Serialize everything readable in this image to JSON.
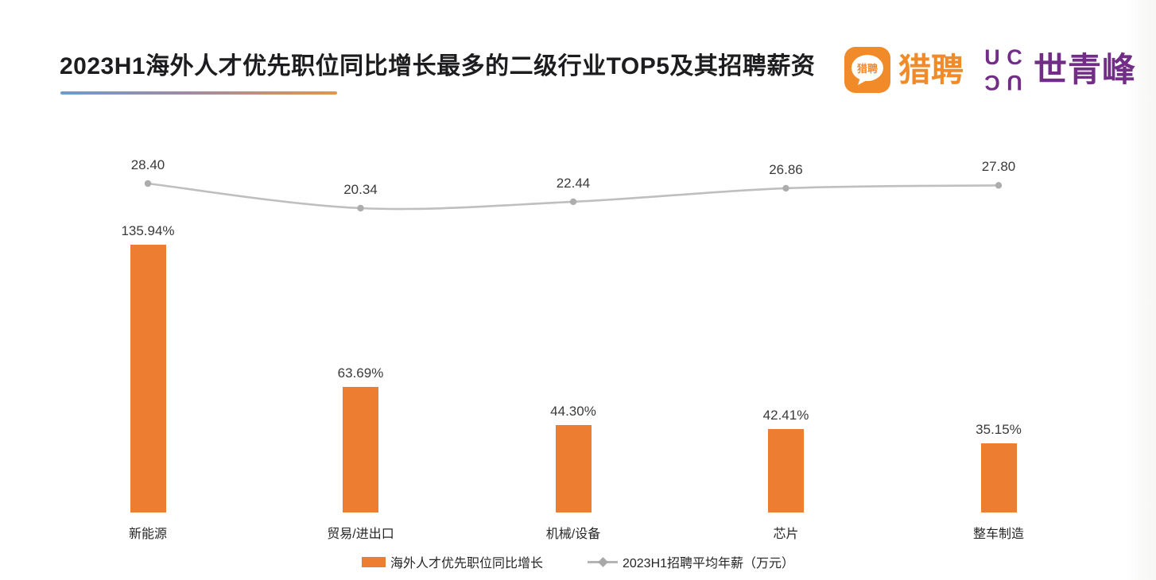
{
  "header": {
    "title": "2023H1海外人才优先职位同比增长最多的二级行业TOP5及其招聘薪资",
    "logos": {
      "liepin_bubble_text": "猎聘",
      "liepin_wordmark": "猎聘",
      "wyef_icon_letters": {
        "tl": "U",
        "tr": "C",
        "bl": "C",
        "br": "U"
      },
      "wyef_wordmark": "世青峰"
    }
  },
  "colors": {
    "bar_orange": "#ED7D31",
    "line_gray": "#BFBFBF",
    "liepin_orange": "#F18A28",
    "wyef_purple": "#722E87",
    "underline_gradient_start": "#6F9CCD",
    "underline_gradient_end": "#E0964E",
    "label_text": "#3A3A3A"
  },
  "chart_data": {
    "type": "bar",
    "subtype": "bar-with-secondary-line",
    "categories": [
      "新能源",
      "贸易/进出口",
      "机械/设备",
      "芯片",
      "整车制造"
    ],
    "series": [
      {
        "name": "海外人才优先职位同比增长",
        "type": "bar",
        "values": [
          135.94,
          63.69,
          44.3,
          42.41,
          35.15
        ],
        "labels": [
          "135.94%",
          "63.69%",
          "44.30%",
          "42.41%",
          "35.15%"
        ],
        "color": "#ED7D31"
      },
      {
        "name": "2023H1招聘平均年薪（万元）",
        "type": "line",
        "smooth": true,
        "values": [
          28.4,
          20.34,
          22.44,
          26.86,
          27.8
        ],
        "labels": [
          "28.40",
          "20.34",
          "22.44",
          "26.86",
          "27.80"
        ],
        "color": "#BFBFBF"
      }
    ],
    "title": "2023H1海外人才优先职位同比增长最多的二级行业TOP5及其招聘薪资",
    "xlabel": "",
    "ylabel": "",
    "axes_hidden": true,
    "grid": false,
    "legend_position": "bottom",
    "bar_axis_implied_range_pct": [
      0,
      150
    ],
    "line_axis_implied_range": [
      15,
      30
    ]
  },
  "legend": {
    "bar_label": "海外人才优先职位同比增长",
    "line_label": "2023H1招聘平均年薪（万元）"
  }
}
